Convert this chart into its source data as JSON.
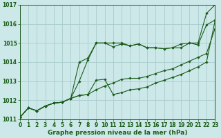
{
  "background_color": "#cce8e8",
  "grid_color": "#aacccc",
  "line_color": "#1a5c1a",
  "xlabel": "Graphe pression niveau de la mer (hPa)",
  "xlabel_fontsize": 6.5,
  "tick_fontsize": 5.5,
  "ylim": [
    1011,
    1017
  ],
  "xlim": [
    0,
    23
  ],
  "yticks": [
    1011,
    1012,
    1013,
    1014,
    1015,
    1016,
    1017
  ],
  "xticks": [
    0,
    1,
    2,
    3,
    4,
    5,
    6,
    7,
    8,
    9,
    10,
    11,
    12,
    13,
    14,
    15,
    16,
    17,
    18,
    19,
    20,
    21,
    22,
    23
  ],
  "series": [
    [
      1011.1,
      1011.6,
      1011.45,
      1011.7,
      1011.85,
      1011.9,
      1012.1,
      1013.0,
      1014.1,
      1015.0,
      1015.0,
      1015.0,
      1015.0,
      1014.85,
      1014.95,
      1014.75,
      1014.75,
      1014.7,
      1014.75,
      1014.75,
      1015.0,
      1014.9,
      1015.95,
      1016.2
    ],
    [
      1011.1,
      1011.6,
      1011.45,
      1011.7,
      1011.85,
      1011.9,
      1012.1,
      1014.0,
      1014.2,
      1015.0,
      1015.0,
      1014.8,
      1014.95,
      1014.85,
      1014.95,
      1014.75,
      1014.75,
      1014.7,
      1014.75,
      1014.95,
      1015.0,
      1015.0,
      1016.55,
      1017.0
    ],
    [
      1011.1,
      1011.6,
      1011.45,
      1011.7,
      1011.85,
      1011.9,
      1012.1,
      1012.25,
      1012.3,
      1012.55,
      1012.75,
      1012.9,
      1013.1,
      1013.15,
      1013.15,
      1013.25,
      1013.4,
      1013.55,
      1013.65,
      1013.85,
      1014.05,
      1014.25,
      1014.45,
      1015.75
    ],
    [
      1011.1,
      1011.6,
      1011.45,
      1011.7,
      1011.85,
      1011.9,
      1012.1,
      1012.25,
      1012.3,
      1013.05,
      1013.1,
      1012.3,
      1012.4,
      1012.55,
      1012.6,
      1012.7,
      1012.9,
      1013.05,
      1013.2,
      1013.35,
      1013.55,
      1013.75,
      1014.0,
      1016.15
    ]
  ]
}
